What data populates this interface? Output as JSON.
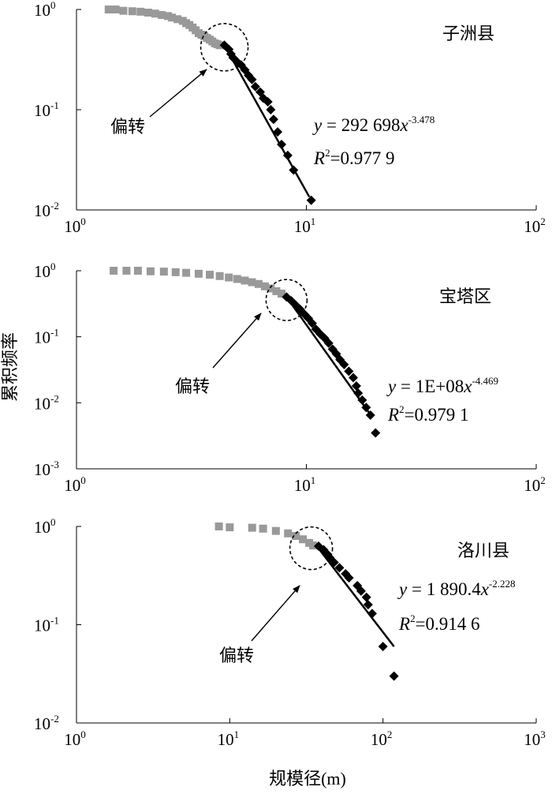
{
  "figure": {
    "ylabel": "累积频率",
    "xlabel": "规模径(m)"
  },
  "chart_data": [
    {
      "type": "scatter",
      "scale": "log-log",
      "region": "子洲县",
      "annotation": "偏转",
      "eq_coef": "292 698",
      "eq_exp": "-3.478",
      "r2_value": "0.977 9",
      "xlim": [
        1,
        100
      ],
      "ylim": [
        0.01,
        1
      ],
      "x_ticks": [
        {
          "base": "10",
          "exp": "0"
        },
        {
          "base": "10",
          "exp": "1"
        },
        {
          "base": "10",
          "exp": "2"
        }
      ],
      "y_ticks": [
        {
          "base": "10",
          "exp": "0"
        },
        {
          "base": "10",
          "exp": "-1"
        },
        {
          "base": "10",
          "exp": "-2"
        }
      ],
      "turn_point": {
        "x": 4.4,
        "y": 0.42
      },
      "fit_line": {
        "x": [
          4.4,
          10.3
        ],
        "y": [
          0.44,
          0.0135
        ]
      },
      "series": [
        {
          "role": "before-turn",
          "color": "#999999",
          "marker": "square",
          "points": [
            [
              1.38,
              1.0
            ],
            [
              1.48,
              1.0
            ],
            [
              1.6,
              0.97
            ],
            [
              1.75,
              0.96
            ],
            [
              1.9,
              0.95
            ],
            [
              2.05,
              0.93
            ],
            [
              2.2,
              0.91
            ],
            [
              2.35,
              0.88
            ],
            [
              2.5,
              0.86
            ],
            [
              2.6,
              0.83
            ],
            [
              2.75,
              0.8
            ],
            [
              2.9,
              0.77
            ],
            [
              3.0,
              0.73
            ],
            [
              3.1,
              0.7
            ],
            [
              3.2,
              0.66
            ],
            [
              3.3,
              0.62
            ],
            [
              3.4,
              0.58
            ],
            [
              3.5,
              0.56
            ],
            [
              3.6,
              0.54
            ],
            [
              3.7,
              0.52
            ],
            [
              3.8,
              0.5
            ],
            [
              3.9,
              0.48
            ],
            [
              4.0,
              0.46
            ],
            [
              4.1,
              0.45
            ],
            [
              4.2,
              0.44
            ]
          ]
        },
        {
          "role": "after-turn",
          "color": "#000000",
          "marker": "diamond",
          "points": [
            [
              4.4,
              0.44
            ],
            [
              4.6,
              0.4
            ],
            [
              4.7,
              0.36
            ],
            [
              4.8,
              0.33
            ],
            [
              5.0,
              0.3
            ],
            [
              5.2,
              0.28
            ],
            [
              5.4,
              0.25
            ],
            [
              5.6,
              0.22
            ],
            [
              5.8,
              0.2
            ],
            [
              6.0,
              0.17
            ],
            [
              6.3,
              0.15
            ],
            [
              6.5,
              0.13
            ],
            [
              6.8,
              0.12
            ],
            [
              7.0,
              0.1
            ],
            [
              7.2,
              0.08
            ],
            [
              7.5,
              0.06
            ],
            [
              7.8,
              0.045
            ],
            [
              8.3,
              0.035
            ],
            [
              8.8,
              0.025
            ],
            [
              10.5,
              0.0125
            ]
          ]
        }
      ]
    },
    {
      "type": "scatter",
      "scale": "log-log",
      "region": "宝塔区",
      "annotation": "偏转",
      "eq_coef": "1E+08",
      "eq_exp": "-4.469",
      "r2_value": "0.979 1",
      "xlim": [
        1,
        100
      ],
      "ylim": [
        0.001,
        1
      ],
      "x_ticks": [
        {
          "base": "10",
          "exp": "0"
        },
        {
          "base": "10",
          "exp": "1"
        },
        {
          "base": "10",
          "exp": "2"
        }
      ],
      "y_ticks": [
        {
          "base": "10",
          "exp": "0"
        },
        {
          "base": "10",
          "exp": "-1"
        },
        {
          "base": "10",
          "exp": "-2"
        },
        {
          "base": "10",
          "exp": "-3"
        }
      ],
      "turn_point": {
        "x": 8.2,
        "y": 0.36
      },
      "fit_line": {
        "x": [
          8.2,
          19.2
        ],
        "y": [
          0.4,
          0.0063
        ]
      },
      "series": [
        {
          "role": "before-turn",
          "color": "#999999",
          "marker": "square",
          "points": [
            [
              1.45,
              1.0
            ],
            [
              1.65,
              1.0
            ],
            [
              1.85,
              1.0
            ],
            [
              2.1,
              0.98
            ],
            [
              2.4,
              0.97
            ],
            [
              2.7,
              0.95
            ],
            [
              3.0,
              0.93
            ],
            [
              3.4,
              0.9
            ],
            [
              3.8,
              0.87
            ],
            [
              4.2,
              0.83
            ],
            [
              4.6,
              0.79
            ],
            [
              5.0,
              0.75
            ],
            [
              5.4,
              0.71
            ],
            [
              5.8,
              0.67
            ],
            [
              6.2,
              0.63
            ],
            [
              6.6,
              0.58
            ],
            [
              7.0,
              0.54
            ],
            [
              7.4,
              0.49
            ],
            [
              7.8,
              0.45
            ]
          ]
        },
        {
          "role": "after-turn",
          "color": "#000000",
          "marker": "diamond",
          "points": [
            [
              8.2,
              0.4
            ],
            [
              8.6,
              0.35
            ],
            [
              9.0,
              0.3
            ],
            [
              9.4,
              0.26
            ],
            [
              9.8,
              0.22
            ],
            [
              10.2,
              0.19
            ],
            [
              10.6,
              0.16
            ],
            [
              11.0,
              0.13
            ],
            [
              11.5,
              0.11
            ],
            [
              12.0,
              0.095
            ],
            [
              12.5,
              0.08
            ],
            [
              13.0,
              0.065
            ],
            [
              13.5,
              0.055
            ],
            [
              14.0,
              0.045
            ],
            [
              14.6,
              0.038
            ],
            [
              15.3,
              0.03
            ],
            [
              16.0,
              0.024
            ],
            [
              16.5,
              0.018
            ],
            [
              16.8,
              0.014
            ],
            [
              17.5,
              0.011
            ],
            [
              18.2,
              0.0085
            ],
            [
              19.0,
              0.0065
            ],
            [
              20.0,
              0.0035
            ]
          ]
        }
      ]
    },
    {
      "type": "scatter",
      "scale": "log-log",
      "region": "洛川县",
      "annotation": "偏转",
      "eq_coef": "1 890.4",
      "eq_exp": "-2.228",
      "r2_value": "0.914 6",
      "xlim": [
        1,
        1000
      ],
      "ylim": [
        0.01,
        1
      ],
      "x_ticks": [
        {
          "base": "10",
          "exp": "0"
        },
        {
          "base": "10",
          "exp": "1"
        },
        {
          "base": "10",
          "exp": "2"
        },
        {
          "base": "10",
          "exp": "3"
        }
      ],
      "y_ticks": [
        {
          "base": "10",
          "exp": "0"
        },
        {
          "base": "10",
          "exp": "-1"
        },
        {
          "base": "10",
          "exp": "-2"
        }
      ],
      "turn_point": {
        "x": 34,
        "y": 0.6
      },
      "fit_line": {
        "x": [
          37,
          118
        ],
        "y": [
          0.63,
          0.06
        ]
      },
      "series": [
        {
          "role": "before-turn",
          "color": "#999999",
          "marker": "square",
          "points": [
            [
              8.5,
              1.0
            ],
            [
              10.0,
              0.98
            ],
            [
              14.0,
              0.97
            ],
            [
              16.5,
              0.95
            ],
            [
              20.0,
              0.9
            ],
            [
              24.0,
              0.85
            ],
            [
              27.0,
              0.8
            ],
            [
              30.0,
              0.74
            ],
            [
              33.0,
              0.68
            ],
            [
              35.0,
              0.64
            ]
          ]
        },
        {
          "role": "after-turn",
          "color": "#000000",
          "marker": "diamond",
          "points": [
            [
              38.0,
              0.63
            ],
            [
              41.0,
              0.58
            ],
            [
              43.0,
              0.53
            ],
            [
              45.0,
              0.48
            ],
            [
              48.0,
              0.43
            ],
            [
              52.0,
              0.38
            ],
            [
              57.0,
              0.33
            ],
            [
              60.0,
              0.3
            ],
            [
              68.0,
              0.25
            ],
            [
              72.0,
              0.22
            ],
            [
              78.0,
              0.19
            ],
            [
              80.0,
              0.16
            ],
            [
              85.0,
              0.13
            ],
            [
              100.0,
              0.06
            ],
            [
              118.0,
              0.03
            ]
          ]
        }
      ]
    }
  ]
}
